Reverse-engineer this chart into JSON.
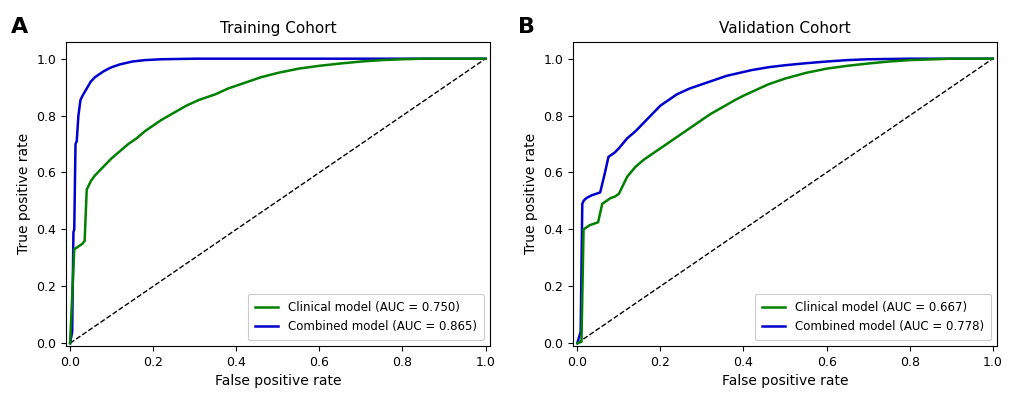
{
  "panel_A": {
    "title": "Training Cohort",
    "label": "A",
    "clinical_label": "Clinical model (AUC = 0.750)",
    "combined_label": "Combined model (AUC = 0.865)",
    "clinical_color": "#008000",
    "combined_color": "#0000CD",
    "clinical_curve": {
      "fpr": [
        0.0,
        0.01,
        0.015,
        0.02,
        0.025,
        0.03,
        0.035,
        0.04,
        0.045,
        0.05,
        0.06,
        0.07,
        0.08,
        0.09,
        0.1,
        0.12,
        0.14,
        0.16,
        0.18,
        0.2,
        0.22,
        0.25,
        0.28,
        0.31,
        0.35,
        0.38,
        0.42,
        0.46,
        0.5,
        0.55,
        0.6,
        0.65,
        0.7,
        0.75,
        0.8,
        0.85,
        0.9,
        0.95,
        1.0
      ],
      "tpr": [
        0.0,
        0.33,
        0.335,
        0.34,
        0.345,
        0.35,
        0.36,
        0.54,
        0.555,
        0.57,
        0.59,
        0.605,
        0.62,
        0.635,
        0.65,
        0.675,
        0.7,
        0.72,
        0.745,
        0.765,
        0.785,
        0.81,
        0.835,
        0.855,
        0.875,
        0.895,
        0.915,
        0.935,
        0.95,
        0.965,
        0.975,
        0.983,
        0.99,
        0.995,
        0.998,
        1.0,
        1.0,
        1.0,
        1.0
      ]
    },
    "combined_curve": {
      "fpr": [
        0.0,
        0.005,
        0.008,
        0.01,
        0.013,
        0.016,
        0.02,
        0.025,
        0.03,
        0.04,
        0.05,
        0.06,
        0.07,
        0.08,
        0.09,
        0.1,
        0.12,
        0.15,
        0.18,
        0.22,
        0.26,
        0.3,
        0.35,
        0.4,
        0.45,
        0.5,
        0.6,
        0.7,
        0.8,
        0.9,
        1.0
      ],
      "tpr": [
        0.0,
        0.04,
        0.39,
        0.4,
        0.7,
        0.71,
        0.8,
        0.855,
        0.87,
        0.895,
        0.92,
        0.935,
        0.945,
        0.955,
        0.963,
        0.97,
        0.98,
        0.99,
        0.995,
        0.998,
        0.999,
        1.0,
        1.0,
        1.0,
        1.0,
        1.0,
        1.0,
        1.0,
        1.0,
        1.0,
        1.0
      ]
    }
  },
  "panel_B": {
    "title": "Validation Cohort",
    "label": "B",
    "clinical_label": "Clinical model (AUC = 0.667)",
    "combined_label": "Combined model (AUC = 0.778)",
    "clinical_color": "#008000",
    "combined_color": "#0000CD",
    "clinical_curve": {
      "fpr": [
        0.0,
        0.01,
        0.015,
        0.02,
        0.025,
        0.03,
        0.04,
        0.05,
        0.06,
        0.07,
        0.08,
        0.09,
        0.1,
        0.12,
        0.14,
        0.16,
        0.18,
        0.2,
        0.23,
        0.26,
        0.29,
        0.32,
        0.35,
        0.38,
        0.4,
        0.43,
        0.46,
        0.5,
        0.55,
        0.6,
        0.65,
        0.7,
        0.75,
        0.8,
        0.9,
        1.0
      ],
      "tpr": [
        0.0,
        0.005,
        0.4,
        0.405,
        0.41,
        0.415,
        0.42,
        0.425,
        0.49,
        0.5,
        0.51,
        0.515,
        0.525,
        0.585,
        0.62,
        0.645,
        0.665,
        0.685,
        0.715,
        0.745,
        0.775,
        0.805,
        0.83,
        0.855,
        0.87,
        0.89,
        0.91,
        0.93,
        0.95,
        0.965,
        0.975,
        0.983,
        0.99,
        0.995,
        1.0,
        1.0
      ]
    },
    "combined_curve": {
      "fpr": [
        0.0,
        0.008,
        0.012,
        0.015,
        0.018,
        0.022,
        0.028,
        0.035,
        0.045,
        0.055,
        0.065,
        0.075,
        0.09,
        0.1,
        0.12,
        0.14,
        0.16,
        0.18,
        0.2,
        0.22,
        0.24,
        0.27,
        0.3,
        0.33,
        0.36,
        0.39,
        0.42,
        0.46,
        0.5,
        0.55,
        0.6,
        0.65,
        0.7,
        0.8,
        0.9,
        1.0
      ],
      "tpr": [
        0.0,
        0.04,
        0.49,
        0.5,
        0.505,
        0.51,
        0.515,
        0.52,
        0.525,
        0.53,
        0.59,
        0.655,
        0.67,
        0.685,
        0.72,
        0.745,
        0.775,
        0.805,
        0.835,
        0.855,
        0.875,
        0.895,
        0.91,
        0.925,
        0.94,
        0.95,
        0.96,
        0.97,
        0.977,
        0.984,
        0.99,
        0.995,
        0.998,
        1.0,
        1.0,
        1.0
      ]
    }
  },
  "xlabel": "False positive rate",
  "ylabel": "True positive rate",
  "background_color": "#ffffff",
  "figure_facecolor": "#ffffff",
  "legend_fontsize": 8.5,
  "title_fontsize": 11,
  "label_fontsize": 10,
  "tick_fontsize": 9,
  "line_width": 1.8
}
